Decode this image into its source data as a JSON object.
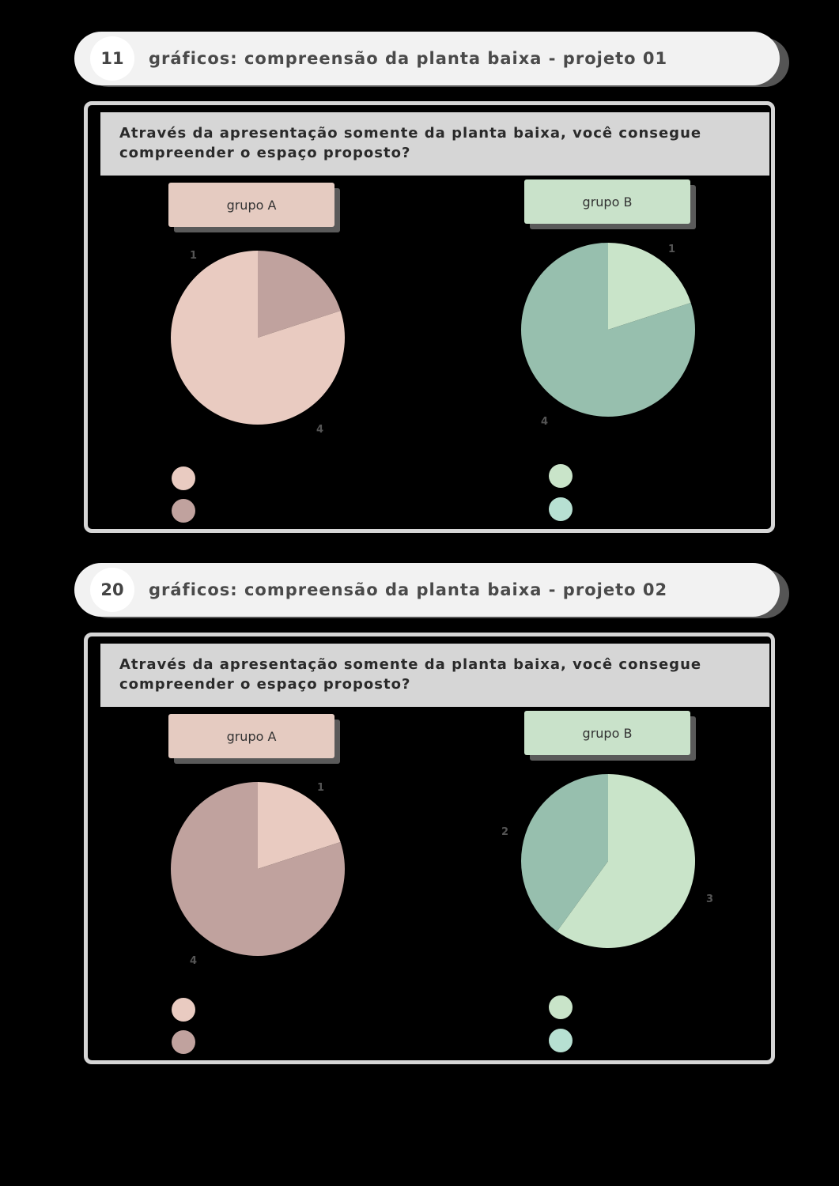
{
  "colors": {
    "a_light": "#e9cbc1",
    "a_dark": "#c0a29e",
    "b_light": "#c9e4c9",
    "b_dark": "#97bfae",
    "b_legend_dark": "#b7e0d2"
  },
  "sections": [
    {
      "number": "11",
      "title": "gráficos: compreensão da planta baixa - projeto 01",
      "question": "Através da apresentação somente da planta baixa, você consegue compreender o espaço proposto?",
      "group_a_label": "grupo A",
      "group_b_label": "grupo B"
    },
    {
      "number": "20",
      "title": "gráficos: compreensão da planta baixa - projeto 02",
      "question": "Através da apresentação somente da planta baixa, você consegue compreender o espaço proposto?",
      "group_a_label": "grupo A",
      "group_b_label": "grupo B"
    }
  ],
  "chart_data": [
    {
      "type": "pie",
      "values": [
        4,
        1
      ],
      "data_labels": [
        "4",
        "1"
      ]
    },
    {
      "type": "pie",
      "values": [
        1,
        4
      ],
      "data_labels": [
        "1",
        "4"
      ]
    },
    {
      "type": "pie",
      "values": [
        1,
        4
      ],
      "data_labels": [
        "1",
        "4"
      ]
    },
    {
      "type": "pie",
      "values": [
        3,
        2
      ],
      "data_labels": [
        "3",
        "2"
      ]
    }
  ]
}
